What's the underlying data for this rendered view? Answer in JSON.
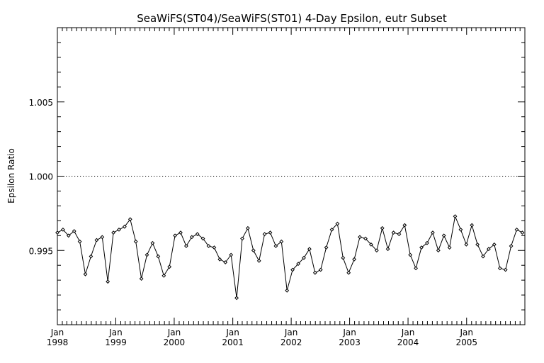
{
  "chart_data": {
    "type": "line",
    "title": "SeaWiFS(ST04)/SeaWiFS(ST01) 4-Day Epsilon, eutr Subset",
    "ylabel": "Epsilon Ratio",
    "xlabel": "",
    "ylim": [
      0.99,
      1.01
    ],
    "xlim": [
      "1998-01-01",
      "2005-12-31"
    ],
    "y_ticks": [
      "0.995",
      "1.000",
      "1.005"
    ],
    "x_tick_month": "Jan",
    "x_tick_years": [
      "1998",
      "1999",
      "2000",
      "2001",
      "2002",
      "2003",
      "2004",
      "2005"
    ],
    "reference_line": {
      "y": 1.0,
      "style": "dotted"
    },
    "series": [
      {
        "x": [
          "1998-01-01",
          "1998-02-05",
          "1998-03-12",
          "1998-04-16",
          "1998-05-21",
          "1998-06-25",
          "1998-07-30",
          "1998-09-03",
          "1998-10-08",
          "1998-11-12",
          "1998-12-17",
          "1999-01-21",
          "1999-02-25",
          "1999-04-01",
          "1999-05-06",
          "1999-06-10",
          "1999-07-15",
          "1999-08-19",
          "1999-09-23",
          "1999-10-28",
          "1999-12-02",
          "2000-01-06",
          "2000-02-10",
          "2000-03-16",
          "2000-04-20",
          "2000-05-25",
          "2000-06-29",
          "2000-08-03",
          "2000-09-07",
          "2000-10-12",
          "2000-11-16",
          "2000-12-21",
          "2001-01-25",
          "2001-03-01",
          "2001-04-05",
          "2001-05-10",
          "2001-06-14",
          "2001-07-19",
          "2001-08-23",
          "2001-09-27",
          "2001-11-01",
          "2001-12-06",
          "2002-01-10",
          "2002-02-14",
          "2002-03-21",
          "2002-04-25",
          "2002-05-30",
          "2002-07-04",
          "2002-08-08",
          "2002-09-12",
          "2002-10-17",
          "2002-11-21",
          "2002-12-26",
          "2003-01-30",
          "2003-03-06",
          "2003-04-10",
          "2003-05-15",
          "2003-06-19",
          "2003-07-24",
          "2003-08-28",
          "2003-10-02",
          "2003-11-06",
          "2003-12-11",
          "2004-01-15",
          "2004-02-19",
          "2004-03-25",
          "2004-04-29",
          "2004-06-03",
          "2004-07-08",
          "2004-08-12",
          "2004-09-16",
          "2004-10-21",
          "2004-11-25",
          "2004-12-30",
          "2005-02-03",
          "2005-03-10",
          "2005-04-14",
          "2005-05-19",
          "2005-06-23",
          "2005-07-28",
          "2005-09-01",
          "2005-10-06",
          "2005-11-10",
          "2005-12-15"
        ],
        "y": [
          0.9962,
          0.9964,
          0.996,
          0.9963,
          0.9956,
          0.9934,
          0.9946,
          0.9957,
          0.9959,
          0.9929,
          0.9962,
          0.9964,
          0.9966,
          0.9971,
          0.9956,
          0.9931,
          0.9947,
          0.9955,
          0.9946,
          0.9933,
          0.9939,
          0.996,
          0.9962,
          0.9953,
          0.9959,
          0.9961,
          0.9958,
          0.9953,
          0.9952,
          0.9944,
          0.9942,
          0.9947,
          0.9918,
          0.9958,
          0.9965,
          0.995,
          0.9943,
          0.9961,
          0.9962,
          0.9953,
          0.9956,
          0.9923,
          0.9937,
          0.9941,
          0.9945,
          0.9951,
          0.9935,
          0.9937,
          0.9952,
          0.9964,
          0.9968,
          0.9945,
          0.9935,
          0.9944,
          0.9959,
          0.9958,
          0.9954,
          0.995,
          0.9965,
          0.9951,
          0.9962,
          0.9961,
          0.9967,
          0.9947,
          0.9938,
          0.9952,
          0.9955,
          0.9962,
          0.995,
          0.996,
          0.9952,
          0.9973,
          0.9964,
          0.9954,
          0.9967,
          0.9954,
          0.9946,
          0.9951,
          0.9954,
          0.9938,
          0.9937,
          0.9953,
          0.9964,
          0.9962
        ]
      }
    ]
  }
}
